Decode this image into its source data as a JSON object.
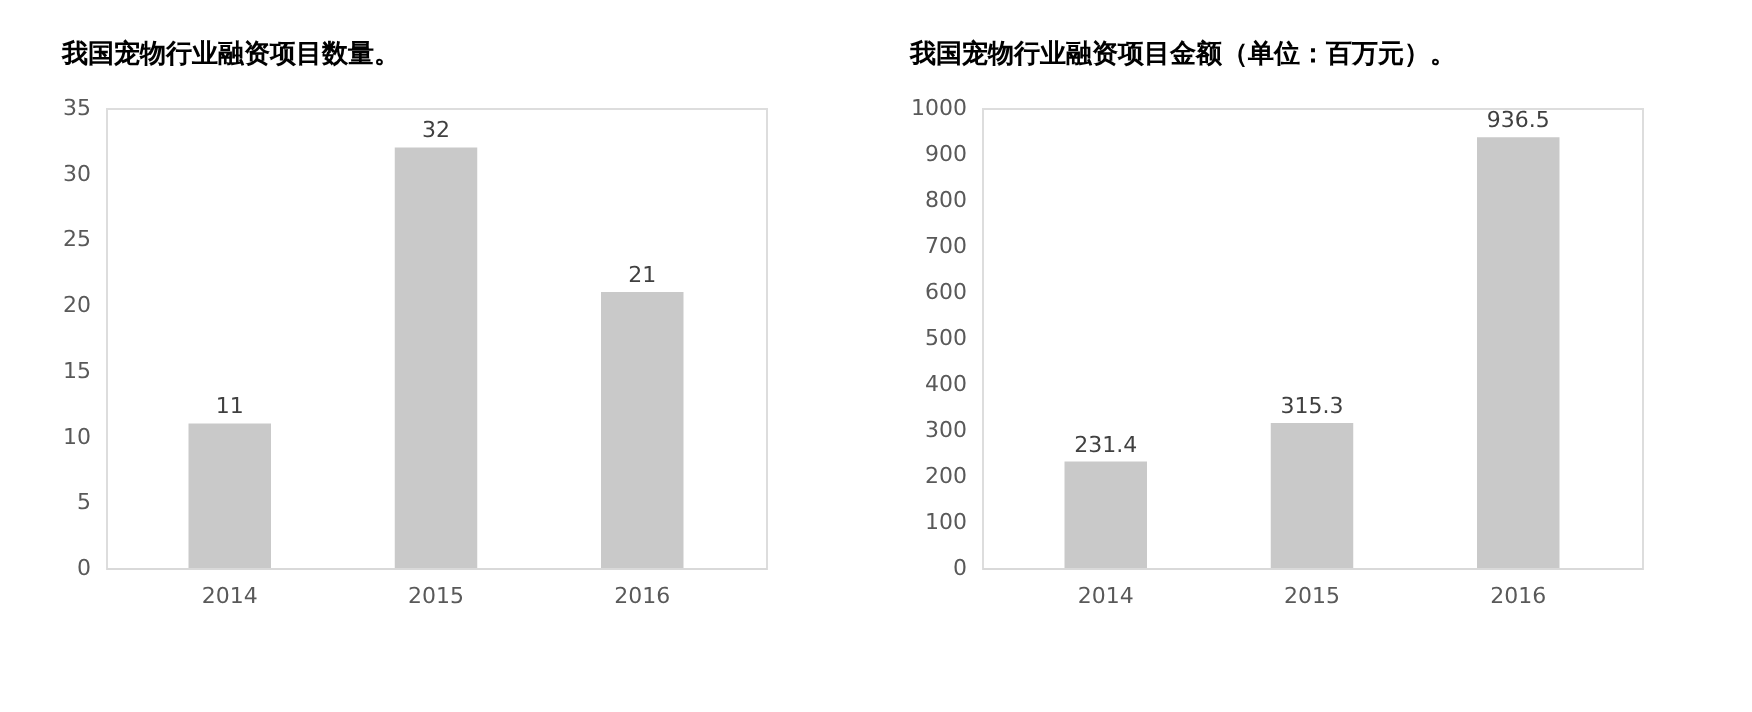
{
  "chart_data": [
    {
      "type": "bar",
      "title": "我国宠物行业融资项目数量。",
      "categories": [
        "2014",
        "2015",
        "2016"
      ],
      "values": [
        11,
        32,
        21
      ],
      "color": "#c9c9c9",
      "ylim": [
        0,
        35
      ],
      "yticks": [
        0,
        5,
        10,
        15,
        20,
        25,
        30,
        35
      ],
      "data_labels": true,
      "grid": false
    },
    {
      "type": "bar",
      "title": "我国宠物行业融资项目金额（单位：百万元）。",
      "categories": [
        "2014",
        "2015",
        "2016"
      ],
      "values": [
        231.4,
        315.3,
        936.5
      ],
      "color": "#c9c9c9",
      "ylim": [
        0,
        1000
      ],
      "yticks": [
        0,
        100,
        200,
        300,
        400,
        500,
        600,
        700,
        800,
        900,
        1000
      ],
      "data_labels": true,
      "grid": false
    }
  ]
}
